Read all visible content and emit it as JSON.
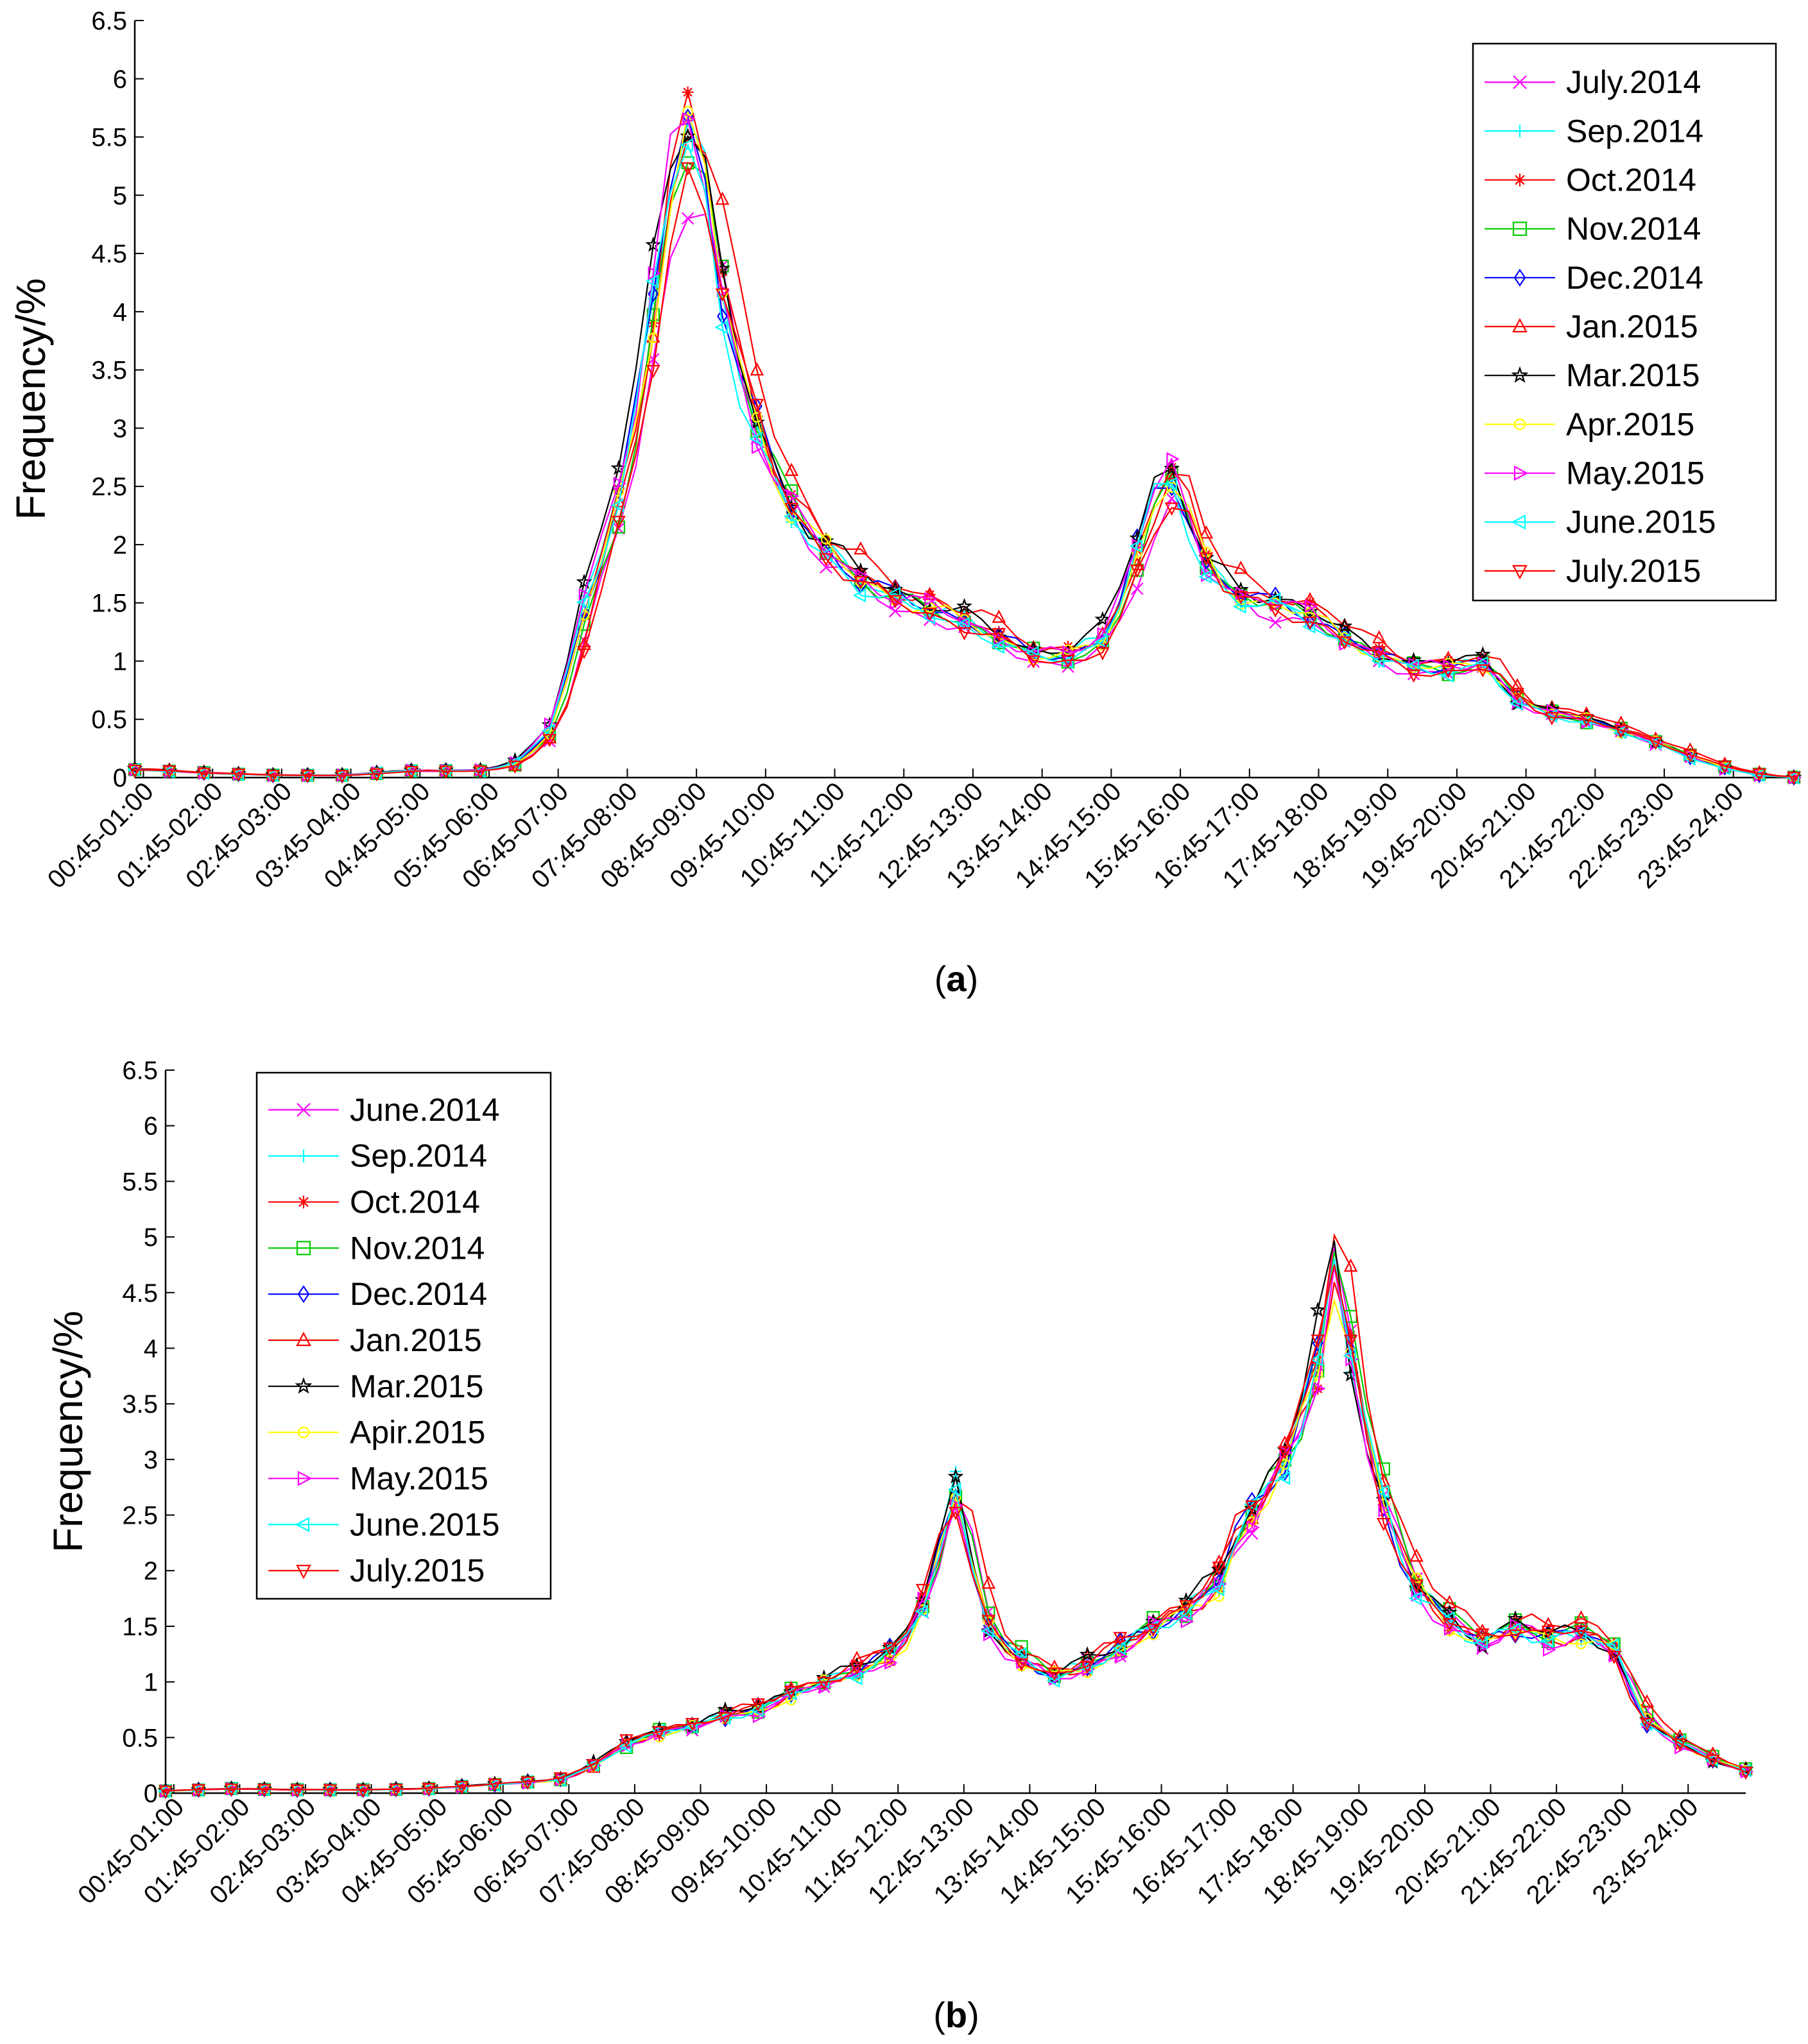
{
  "figure": {
    "panels": [
      {
        "caption_letter": "a",
        "chart_data": {
          "type": "line",
          "ylabel": "Frequency/%",
          "ylim": [
            0,
            6.5
          ],
          "yticks": [
            "0",
            "0.5",
            "1",
            "1.5",
            "2",
            "2.5",
            "3",
            "3.5",
            "4",
            "4.5",
            "5",
            "5.5",
            "6",
            "6.5"
          ],
          "xtick_labels": [
            "00:45-01:00",
            "01:45-02:00",
            "02:45-03:00",
            "03:45-04:00",
            "04:45-05:00",
            "05:45-06:00",
            "06:45-07:00",
            "07:45-08:00",
            "08:45-09:00",
            "09:45-10:00",
            "10:45-11:00",
            "11:45-12:00",
            "12:45-13:00",
            "13:45-14:00",
            "14:45-15:00",
            "15:45-16:00",
            "16:45-17:00",
            "17:45-18:00",
            "18:45-19:00",
            "19:45-20:00",
            "20:45-21:00",
            "21:45-22:00",
            "22:45-23:00",
            "23:45-24:00"
          ],
          "legend_position": "top-right",
          "x_note": "x index = hour of day, 0 = 00:45-01:00 interval, 23 = 23:45-24:00 interval, step 0.25 (15-min intervals)",
          "base_profile": [
            [
              0,
              0.07
            ],
            [
              1,
              0.04
            ],
            [
              2,
              0.02
            ],
            [
              3,
              0.02
            ],
            [
              4,
              0.06
            ],
            [
              5,
              0.06
            ],
            [
              5.5,
              0.12
            ],
            [
              6,
              0.4
            ],
            [
              6.25,
              0.9
            ],
            [
              6.5,
              1.5
            ],
            [
              6.75,
              1.95
            ],
            [
              7,
              2.5
            ],
            [
              7.25,
              3.2
            ],
            [
              7.5,
              4.2
            ],
            [
              7.75,
              5.2
            ],
            [
              8,
              5.6
            ],
            [
              8.25,
              5.1
            ],
            [
              8.5,
              4.1
            ],
            [
              8.75,
              3.5
            ],
            [
              9,
              3.0
            ],
            [
              9.25,
              2.6
            ],
            [
              9.5,
              2.3
            ],
            [
              9.75,
              2.1
            ],
            [
              10,
              1.95
            ],
            [
              10.5,
              1.7
            ],
            [
              11,
              1.55
            ],
            [
              11.5,
              1.45
            ],
            [
              12,
              1.35
            ],
            [
              12.5,
              1.2
            ],
            [
              13,
              1.05
            ],
            [
              13.5,
              1.05
            ],
            [
              14,
              1.2
            ],
            [
              14.25,
              1.55
            ],
            [
              14.5,
              2.0
            ],
            [
              14.75,
              2.45
            ],
            [
              15,
              2.6
            ],
            [
              15.25,
              2.2
            ],
            [
              15.5,
              1.8
            ],
            [
              16,
              1.55
            ],
            [
              16.5,
              1.5
            ],
            [
              17,
              1.4
            ],
            [
              17.5,
              1.2
            ],
            [
              18,
              1.05
            ],
            [
              18.5,
              0.95
            ],
            [
              19,
              0.95
            ],
            [
              19.5,
              1.0
            ],
            [
              20,
              0.65
            ],
            [
              20.5,
              0.55
            ],
            [
              21,
              0.5
            ],
            [
              21.5,
              0.4
            ],
            [
              22,
              0.3
            ],
            [
              22.5,
              0.18
            ],
            [
              23,
              0.08
            ],
            [
              23.5,
              0.02
            ],
            [
              24,
              0.0
            ]
          ],
          "series": [
            {
              "name": "July.2014",
              "color": "#ff00ff",
              "marker": "x",
              "scale": 0.93,
              "shift": 0.1
            },
            {
              "name": "Sep.2014",
              "color": "#00ffff",
              "marker": "+",
              "scale": 1.0,
              "shift": 0.0
            },
            {
              "name": "Oct.2014",
              "color": "#ff0000",
              "marker": "*",
              "scale": 1.02,
              "shift": 0.05
            },
            {
              "name": "Nov.2014",
              "color": "#00cc00",
              "marker": "square",
              "scale": 0.98,
              "shift": 0.08
            },
            {
              "name": "Dec.2014",
              "color": "#0000ff",
              "marker": "diamond",
              "scale": 1.0,
              "shift": 0.02
            },
            {
              "name": "Jan.2015",
              "color": "#ff0000",
              "marker": "triangle-up",
              "scale": 1.05,
              "shift": 0.15
            },
            {
              "name": "Mar.2015",
              "color": "#000000",
              "marker": "pentagram",
              "scale": 1.04,
              "shift": -0.03
            },
            {
              "name": "Apr.2015",
              "color": "#ffff00",
              "marker": "circle",
              "scale": 0.99,
              "shift": 0.04
            },
            {
              "name": "May.2015",
              "color": "#ff00ff",
              "marker": "triangle-right",
              "scale": 1.01,
              "shift": -0.02
            },
            {
              "name": "June.2015",
              "color": "#00ffff",
              "marker": "triangle-left",
              "scale": 0.97,
              "shift": -0.01
            },
            {
              "name": "July.2015",
              "color": "#ff0000",
              "marker": "triangle-down",
              "scale": 0.95,
              "shift": 0.12
            }
          ]
        }
      },
      {
        "caption_letter": "b",
        "chart_data": {
          "type": "line",
          "ylabel": "Frequency/%",
          "ylim": [
            0,
            6.5
          ],
          "yticks": [
            "0",
            "0.5",
            "1",
            "1.5",
            "2",
            "2.5",
            "3",
            "3.5",
            "4",
            "4.5",
            "5",
            "5.5",
            "6",
            "6.5"
          ],
          "xtick_labels": [
            "00:45-01:00",
            "01:45-02:00",
            "02:45-03:00",
            "03:45-04:00",
            "04:45-05:00",
            "05:45-06:00",
            "06:45-07:00",
            "07:45-08:00",
            "08:45-09:00",
            "09:45-10:00",
            "10:45-11:00",
            "11:45-12:00",
            "12:45-13:00",
            "13:45-14:00",
            "14:45-15:00",
            "15:45-16:00",
            "16:45-17:00",
            "17:45-18:00",
            "18:45-19:00",
            "19:45-20:00",
            "20:45-21:00",
            "21:45-22:00",
            "22:45-23:00",
            "23:45-24:00"
          ],
          "legend_position": "top-left",
          "x_note": "x index = hour of day, 0 = 00:45-01:00 interval, 23 = 23:45-24:00 interval, step 0.25 (15-min intervals)",
          "base_profile": [
            [
              0,
              0.02
            ],
            [
              1,
              0.04
            ],
            [
              2,
              0.03
            ],
            [
              3,
              0.03
            ],
            [
              4,
              0.04
            ],
            [
              5,
              0.08
            ],
            [
              6,
              0.12
            ],
            [
              6.5,
              0.25
            ],
            [
              7,
              0.45
            ],
            [
              7.5,
              0.55
            ],
            [
              8,
              0.6
            ],
            [
              8.5,
              0.7
            ],
            [
              9,
              0.75
            ],
            [
              9.5,
              0.9
            ],
            [
              10,
              1.0
            ],
            [
              10.5,
              1.1
            ],
            [
              11,
              1.25
            ],
            [
              11.25,
              1.4
            ],
            [
              11.5,
              1.7
            ],
            [
              11.75,
              2.2
            ],
            [
              12,
              2.75
            ],
            [
              12.25,
              2.1
            ],
            [
              12.5,
              1.5
            ],
            [
              12.75,
              1.3
            ],
            [
              13,
              1.2
            ],
            [
              13.5,
              1.05
            ],
            [
              14,
              1.15
            ],
            [
              14.5,
              1.3
            ],
            [
              15,
              1.5
            ],
            [
              15.5,
              1.65
            ],
            [
              16,
              1.9
            ],
            [
              16.25,
              2.3
            ],
            [
              16.5,
              2.5
            ],
            [
              17,
              3.0
            ],
            [
              17.25,
              3.4
            ],
            [
              17.5,
              3.9
            ],
            [
              17.75,
              4.9
            ],
            [
              18,
              4.0
            ],
            [
              18.25,
              3.2
            ],
            [
              18.5,
              2.6
            ],
            [
              18.75,
              2.2
            ],
            [
              19,
              1.85
            ],
            [
              19.5,
              1.55
            ],
            [
              20,
              1.35
            ],
            [
              20.5,
              1.5
            ],
            [
              21,
              1.4
            ],
            [
              21.5,
              1.45
            ],
            [
              22,
              1.3
            ],
            [
              22.25,
              0.95
            ],
            [
              22.5,
              0.65
            ],
            [
              23,
              0.45
            ],
            [
              23.5,
              0.3
            ],
            [
              24,
              0.2
            ]
          ],
          "series": [
            {
              "name": "June.2014",
              "color": "#ff00ff",
              "marker": "x",
              "scale": 1.0,
              "shift": 0.05
            },
            {
              "name": "Sep.2014",
              "color": "#00ffff",
              "marker": "+",
              "scale": 1.0,
              "shift": 0.0
            },
            {
              "name": "Oct.2014",
              "color": "#ff0000",
              "marker": "*",
              "scale": 0.99,
              "shift": 0.02
            },
            {
              "name": "Nov.2014",
              "color": "#00cc00",
              "marker": "square",
              "scale": 1.02,
              "shift": 0.06
            },
            {
              "name": "Dec.2014",
              "color": "#0000ff",
              "marker": "diamond",
              "scale": 1.0,
              "shift": -0.02
            },
            {
              "name": "Jan.2015",
              "color": "#ff0000",
              "marker": "triangle-up",
              "scale": 1.06,
              "shift": 0.08
            },
            {
              "name": "Mar.2015",
              "color": "#000000",
              "marker": "pentagram",
              "scale": 1.02,
              "shift": -0.04
            },
            {
              "name": "Apir.2015",
              "color": "#ffff00",
              "marker": "circle",
              "scale": 0.98,
              "shift": 0.03
            },
            {
              "name": "May.2015",
              "color": "#ff00ff",
              "marker": "triangle-right",
              "scale": 0.97,
              "shift": -0.01
            },
            {
              "name": "June.2015",
              "color": "#00ffff",
              "marker": "triangle-left",
              "scale": 0.99,
              "shift": 0.01
            },
            {
              "name": "July.2015",
              "color": "#ff0000",
              "marker": "triangle-down",
              "scale": 1.01,
              "shift": -0.05
            }
          ]
        }
      }
    ]
  }
}
